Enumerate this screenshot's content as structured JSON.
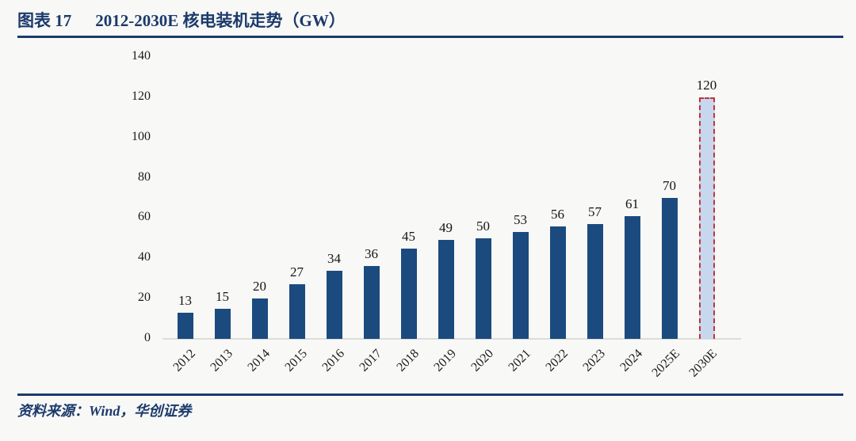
{
  "header": {
    "figure_label": "图表 17",
    "title": "2012-2030E 核电装机走势（GW）"
  },
  "source": {
    "text": "资料来源：Wind，华创证券"
  },
  "colors": {
    "accent_navy": "#1b3a6b",
    "bar_fill": "#1b4b7e",
    "forecast_fill": "#c7d7ee",
    "forecast_border": "#c2323c",
    "baseline": "#dcdcda",
    "label_text": "#1a1a1a",
    "background": "#f8f8f6"
  },
  "chart_data": {
    "type": "bar",
    "title": "2012-2030E 核电装机走势（GW）",
    "categories": [
      "2012",
      "2013",
      "2014",
      "2015",
      "2016",
      "2017",
      "2018",
      "2019",
      "2020",
      "2021",
      "2022",
      "2023",
      "2024",
      "2025E",
      "2030E"
    ],
    "values": [
      13,
      15,
      20,
      27,
      34,
      36,
      45,
      49,
      50,
      53,
      56,
      57,
      61,
      70,
      120
    ],
    "highlight_category": "2030E",
    "highlight_style": "light-blue fill with red dashed outline (forecast)",
    "data_labels": [
      13,
      15,
      20,
      27,
      34,
      36,
      45,
      49,
      50,
      53,
      56,
      57,
      61,
      70,
      120
    ],
    "xlabel": "",
    "ylabel": "",
    "ylim": [
      0,
      140
    ],
    "yticks": [
      0,
      20,
      40,
      60,
      80,
      100,
      120,
      140
    ],
    "grid": false,
    "legend": "none",
    "x_tick_rotation_deg": -45
  }
}
